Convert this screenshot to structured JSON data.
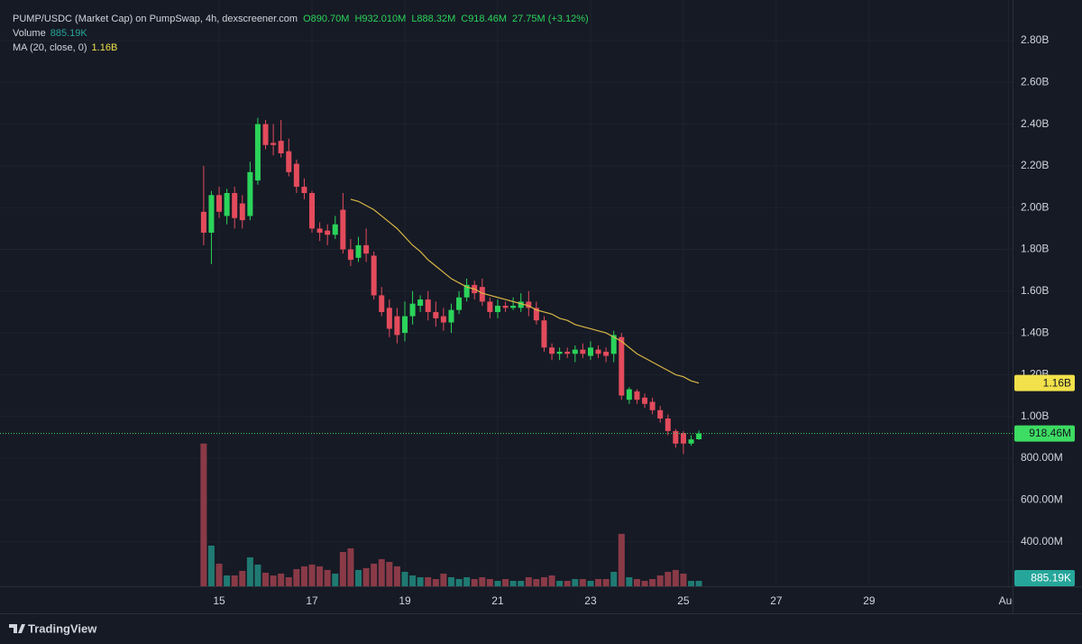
{
  "header": {
    "title": "PUMP/USDC (Market Cap) on PumpSwap, 4h, dexscreener.com",
    "ohlc": [
      "O890.70M",
      "H932.010M",
      "L888.32M",
      "C918.46M"
    ],
    "change": "27.75M (+3.12%)",
    "volume_label": "Volume",
    "brand": "TradingView"
  },
  "chart_data": {
    "type": "candlestick",
    "x": [
      14.667,
      14.833,
      15,
      15.167,
      15.333,
      15.5,
      15.667,
      15.833,
      16,
      16.167,
      16.333,
      16.5,
      16.667,
      16.833,
      17,
      17.167,
      17.333,
      17.5,
      17.667,
      17.833,
      18,
      18.167,
      18.333,
      18.5,
      18.667,
      18.833,
      19,
      19.167,
      19.333,
      19.5,
      19.667,
      19.833,
      20,
      20.167,
      20.333,
      20.5,
      20.667,
      20.833,
      21,
      21.167,
      21.333,
      21.5,
      21.667,
      21.833,
      22,
      22.167,
      22.333,
      22.5,
      22.667,
      22.833,
      23,
      23.167,
      23.333,
      23.5,
      23.667,
      23.833,
      24,
      24.167,
      24.333,
      24.5,
      24.667,
      24.833,
      25,
      25.167,
      25.333
    ],
    "open": [
      1980000000.0,
      1880000000.0,
      2060000000.0,
      1960000000.0,
      2070000000.0,
      2020000000.0,
      1960000000.0,
      2130000000.0,
      2400000000.0,
      2310000000.0,
      2320000000.0,
      2270000000.0,
      2210000000.0,
      2100000000.0,
      2070000000.0,
      1900000000.0,
      1890000000.0,
      1870000000.0,
      1990000000.0,
      1800000000.0,
      1760000000.0,
      1820000000.0,
      1770000000.0,
      1580000000.0,
      1520000000.0,
      1480000000.0,
      1400000000.0,
      1480000000.0,
      1530000000.0,
      1560000000.0,
      1500000000.0,
      1480000000.0,
      1450000000.0,
      1510000000.0,
      1570000000.0,
      1630000000.0,
      1620000000.0,
      1550000000.0,
      1500000000.0,
      1530000000.0,
      1520000000.0,
      1520000000.0,
      1550000000.0,
      1520000000.0,
      1460000000.0,
      1330000000.0,
      1300000000.0,
      1310000000.0,
      1300000000.0,
      1320000000.0,
      1290000000.0,
      1320000000.0,
      1310000000.0,
      1300000000.0,
      1380000000.0,
      1080000000.0,
      1120000000.0,
      1090000000.0,
      1070000000.0,
      1030000000.0,
      990000000.0,
      930000000.0,
      920000000.0,
      870000000.0,
      890700000
    ],
    "high": [
      2200000000.0,
      2080000000.0,
      2100000000.0,
      2090000000.0,
      2100000000.0,
      2060000000.0,
      2220000000.0,
      2430000000.0,
      2420000000.0,
      2400000000.0,
      2420000000.0,
      2330000000.0,
      2230000000.0,
      2140000000.0,
      2080000000.0,
      1930000000.0,
      1920000000.0,
      1960000000.0,
      2070000000.0,
      1850000000.0,
      1860000000.0,
      1900000000.0,
      1790000000.0,
      1620000000.0,
      1560000000.0,
      1520000000.0,
      1550000000.0,
      1600000000.0,
      1580000000.0,
      1600000000.0,
      1550000000.0,
      1520000000.0,
      1540000000.0,
      1600000000.0,
      1660000000.0,
      1650000000.0,
      1660000000.0,
      1570000000.0,
      1560000000.0,
      1550000000.0,
      1570000000.0,
      1590000000.0,
      1600000000.0,
      1550000000.0,
      1480000000.0,
      1350000000.0,
      1330000000.0,
      1330000000.0,
      1340000000.0,
      1350000000.0,
      1360000000.0,
      1340000000.0,
      1330000000.0,
      1410000000.0,
      1400000000.0,
      1140000000.0,
      1130000000.0,
      1110000000.0,
      1090000000.0,
      1050000000.0,
      1010000000.0,
      940000000.0,
      930000000.0,
      910000000.0,
      932010000
    ],
    "low": [
      1820000000.0,
      1730000000.0,
      1950000000.0,
      1920000000.0,
      1900000000.0,
      1900000000.0,
      1940000000.0,
      2110000000.0,
      2280000000.0,
      2250000000.0,
      2240000000.0,
      2150000000.0,
      2070000000.0,
      2040000000.0,
      1880000000.0,
      1840000000.0,
      1820000000.0,
      1850000000.0,
      1780000000.0,
      1720000000.0,
      1740000000.0,
      1740000000.0,
      1560000000.0,
      1480000000.0,
      1380000000.0,
      1350000000.0,
      1360000000.0,
      1440000000.0,
      1500000000.0,
      1460000000.0,
      1430000000.0,
      1410000000.0,
      1400000000.0,
      1490000000.0,
      1550000000.0,
      1560000000.0,
      1530000000.0,
      1470000000.0,
      1470000000.0,
      1500000000.0,
      1510000000.0,
      1500000000.0,
      1480000000.0,
      1440000000.0,
      1310000000.0,
      1270000000.0,
      1270000000.0,
      1280000000.0,
      1260000000.0,
      1280000000.0,
      1270000000.0,
      1280000000.0,
      1260000000.0,
      1260000000.0,
      1080000000.0,
      1060000000.0,
      1060000000.0,
      1040000000.0,
      1010000000.0,
      970000000.0,
      910000000.0,
      850000000.0,
      820000000.0,
      860000000.0,
      888320000
    ],
    "close": [
      1880000000.0,
      2060000000.0,
      1980000000.0,
      2070000000.0,
      1950000000.0,
      1940000000.0,
      2170000000.0,
      2400000000.0,
      2300000000.0,
      2300000000.0,
      2260000000.0,
      2170000000.0,
      2100000000.0,
      2070000000.0,
      1900000000.0,
      1880000000.0,
      1870000000.0,
      1920000000.0,
      1800000000.0,
      1750000000.0,
      1820000000.0,
      1780000000.0,
      1580000000.0,
      1500000000.0,
      1420000000.0,
      1390000000.0,
      1480000000.0,
      1540000000.0,
      1560000000.0,
      1500000000.0,
      1470000000.0,
      1450000000.0,
      1510000000.0,
      1570000000.0,
      1630000000.0,
      1590000000.0,
      1550000000.0,
      1500000000.0,
      1530000000.0,
      1520000000.0,
      1530000000.0,
      1550000000.0,
      1520000000.0,
      1460000000.0,
      1330000000.0,
      1300000000.0,
      1310000000.0,
      1300000000.0,
      1320000000.0,
      1300000000.0,
      1330000000.0,
      1300000000.0,
      1290000000.0,
      1390000000.0,
      1100000000.0,
      1130000000.0,
      1080000000.0,
      1060000000.0,
      1030000000.0,
      990000000.0,
      930000000.0,
      870000000.0,
      870000000.0,
      890000000.0,
      918460000
    ],
    "volume": [
      23300000.0,
      6640000.0,
      3690000.0,
      1770000.0,
      1770000.0,
      2510000.0,
      4720000.0,
      3540000.0,
      2210000.0,
      1770000.0,
      2070000.0,
      1480000.0,
      2800000.0,
      3250000.0,
      3540000.0,
      3250000.0,
      2660000.0,
      2070000.0,
      5600000.0,
      6200000.0,
      2660000.0,
      2950000.0,
      3690000.0,
      4430000.0,
      3980000.0,
      3250000.0,
      2360000.0,
      1770000.0,
      1480000.0,
      1480000.0,
      1180000.0,
      2070000.0,
      1480000.0,
      1180000.0,
      1480000.0,
      1180000.0,
      1480000.0,
      1180000.0,
      885000,
      1180000.0,
      885000,
      885000,
      1480000.0,
      1180000.0,
      1480000.0,
      1770000.0,
      885000,
      885000,
      1180000.0,
      1180000.0,
      885000,
      1180000.0,
      1180000.0,
      2360000.0,
      8560000.0,
      1480000.0,
      1180000.0,
      885000,
      1180000.0,
      1770000.0,
      2360000.0,
      2660000.0,
      2070000.0,
      885000,
      885190
    ],
    "ma": {
      "name": "MA (20, close, 0)",
      "color": "#d9b744",
      "values": [
        null,
        null,
        null,
        null,
        null,
        null,
        null,
        null,
        null,
        null,
        null,
        null,
        null,
        null,
        null,
        null,
        null,
        null,
        null,
        2040000000.0,
        2030000000.0,
        2010000000.0,
        1990000000.0,
        1960000000.0,
        1930000000.0,
        1900000000.0,
        1860000000.0,
        1820000000.0,
        1790000000.0,
        1750000000.0,
        1720000000.0,
        1690000000.0,
        1660000000.0,
        1640000000.0,
        1620000000.0,
        1610000000.0,
        1590000000.0,
        1580000000.0,
        1570000000.0,
        1560000000.0,
        1550000000.0,
        1540000000.0,
        1530000000.0,
        1510000000.0,
        1500000000.0,
        1490000000.0,
        1470000000.0,
        1460000000.0,
        1440000000.0,
        1430000000.0,
        1420000000.0,
        1410000000.0,
        1400000000.0,
        1380000000.0,
        1360000000.0,
        1330000000.0,
        1300000000.0,
        1280000000.0,
        1260000000.0,
        1240000000.0,
        1220000000.0,
        1200000000.0,
        1190000000.0,
        1170000000.0,
        1160000000.0
      ]
    },
    "value_labels": {
      "close": "918.46M",
      "ma": "1.16B",
      "volume": "885.19K"
    },
    "colors": {
      "up": "#2bd45a",
      "down": "#e34b5c",
      "volume_up": "#1f7a72",
      "volume_down": "#8a3a47",
      "price_tag": "#3ddc62",
      "volume_tag": "#26a69a",
      "ma_tag": "#f2e14a"
    },
    "ylim": [
      186600000,
      2994400000
    ],
    "yticks": [
      {
        "value": 2800000000,
        "label": "2.80B"
      },
      {
        "value": 2600000000,
        "label": "2.60B"
      },
      {
        "value": 2400000000,
        "label": "2.40B"
      },
      {
        "value": 2200000000,
        "label": "2.20B"
      },
      {
        "value": 2000000000,
        "label": "2.00B"
      },
      {
        "value": 1800000000,
        "label": "1.80B"
      },
      {
        "value": 1600000000,
        "label": "1.60B"
      },
      {
        "value": 1400000000,
        "label": "1.40B"
      },
      {
        "value": 1200000000,
        "label": "1.20B"
      },
      {
        "value": 1000000000,
        "label": "1.00B"
      },
      {
        "value": 800000000,
        "label": "800.00M"
      },
      {
        "value": 600000000,
        "label": "600.00M"
      },
      {
        "value": 400000000,
        "label": "400.00M"
      }
    ],
    "volume_ylim": [
      0,
      24000000
    ],
    "xlim": [
      10.28,
      32.09
    ],
    "xticks": [
      15,
      17,
      19,
      21,
      23,
      25,
      27,
      29,
      {
        "value": 32,
        "label": "Aug"
      }
    ],
    "grid": true
  }
}
